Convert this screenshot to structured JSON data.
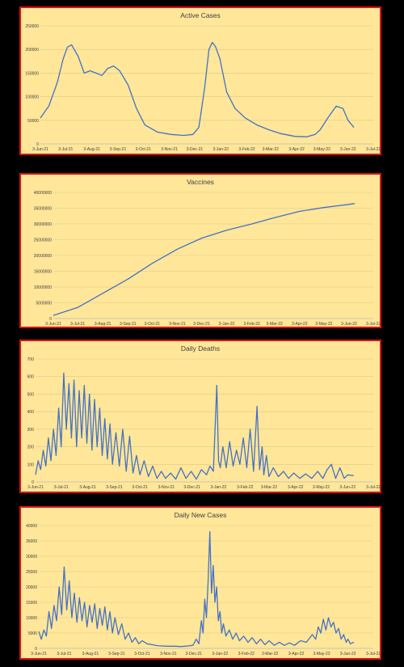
{
  "chart_data": [
    {
      "type": "line",
      "title": "Active Cases",
      "color": "#4472c4",
      "y_ticks": [
        "0",
        "50000",
        "100000",
        "150000",
        "200000",
        "250000"
      ],
      "ylim": [
        0,
        250000
      ],
      "x_labels": [
        "3-Jun-21",
        "3-Jul-21",
        "3-Aug-21",
        "3-Sep-21",
        "3-Oct-21",
        "3-Nov-21",
        "3-Dec-21",
        "3-Jan-22",
        "3-Feb-22",
        "3-Mar-22",
        "3-Apr-22",
        "3-May-22",
        "3-Jun-22",
        "3-Jul-22"
      ],
      "x_dates": [
        "2021-06-03",
        "2021-06-13",
        "2021-06-23",
        "2021-06-30",
        "2021-07-05",
        "2021-07-10",
        "2021-07-18",
        "2021-07-25",
        "2021-08-01",
        "2021-08-08",
        "2021-08-15",
        "2021-08-22",
        "2021-08-29",
        "2021-09-05",
        "2021-09-15",
        "2021-09-25",
        "2021-10-05",
        "2021-10-20",
        "2021-11-05",
        "2021-11-20",
        "2021-12-01",
        "2021-12-08",
        "2021-12-15",
        "2021-12-20",
        "2021-12-24",
        "2021-12-28",
        "2022-01-02",
        "2022-01-10",
        "2022-01-20",
        "2022-02-01",
        "2022-02-15",
        "2022-03-01",
        "2022-03-15",
        "2022-04-01",
        "2022-04-15",
        "2022-04-25",
        "2022-05-01",
        "2022-05-10",
        "2022-05-20",
        "2022-05-28",
        "2022-06-03",
        "2022-06-10"
      ],
      "values": [
        55000,
        80000,
        130000,
        180000,
        205000,
        210000,
        185000,
        150000,
        155000,
        150000,
        145000,
        160000,
        165000,
        155000,
        125000,
        75000,
        40000,
        25000,
        20000,
        18000,
        20000,
        35000,
        120000,
        200000,
        215000,
        205000,
        180000,
        110000,
        75000,
        55000,
        40000,
        30000,
        22000,
        16000,
        15000,
        20000,
        30000,
        55000,
        80000,
        75000,
        50000,
        35000
      ]
    },
    {
      "type": "line",
      "title": "Vaccines",
      "color": "#4472c4",
      "y_ticks": [
        "0",
        "5000000",
        "10000000",
        "15000000",
        "20000000",
        "25000000",
        "30000000",
        "35000000",
        "40000000"
      ],
      "ylim": [
        0,
        40000000
      ],
      "x_labels": [
        "3-Jun-21",
        "3-Jul-21",
        "3-Aug-21",
        "3-Sep-21",
        "3-Oct-21",
        "3-Nov-21",
        "3-Dec-21",
        "3-Jan-22",
        "3-Feb-22",
        "3-Mar-22",
        "3-Apr-22",
        "3-May-22",
        "3-Jun-22",
        "3-Jul-22"
      ],
      "x_dates": [
        "2021-06-03",
        "2021-07-03",
        "2021-08-03",
        "2021-09-03",
        "2021-10-03",
        "2021-11-03",
        "2021-12-03",
        "2022-01-03",
        "2022-02-03",
        "2022-03-03",
        "2022-04-03",
        "2022-05-03",
        "2022-06-03",
        "2022-06-10"
      ],
      "values": [
        1000000,
        3500000,
        8000000,
        12500000,
        17500000,
        22000000,
        25500000,
        28000000,
        30000000,
        32000000,
        34000000,
        35200000,
        36200000,
        36500000
      ]
    },
    {
      "type": "line",
      "title": "Daily Deaths",
      "color": "#4472c4",
      "y_ticks": [
        "0",
        "100",
        "200",
        "300",
        "400",
        "500",
        "600",
        "700"
      ],
      "ylim": [
        0,
        700
      ],
      "x_labels": [
        "3-Jun-21",
        "3-Jul-21",
        "3-Aug-21",
        "3-Sep-21",
        "3-Oct-21",
        "3-Nov-21",
        "3-Dec-21",
        "3-Jan-22",
        "3-Feb-22",
        "3-Mar-22",
        "3-Apr-22",
        "3-May-22",
        "3-Jun-22",
        "3-Jul-22"
      ],
      "x_dates": [
        "2021-06-03",
        "2021-06-06",
        "2021-06-09",
        "2021-06-12",
        "2021-06-15",
        "2021-06-18",
        "2021-06-21",
        "2021-06-24",
        "2021-06-27",
        "2021-06-30",
        "2021-07-03",
        "2021-07-06",
        "2021-07-09",
        "2021-07-12",
        "2021-07-15",
        "2021-07-18",
        "2021-07-21",
        "2021-07-24",
        "2021-07-27",
        "2021-07-30",
        "2021-08-02",
        "2021-08-05",
        "2021-08-08",
        "2021-08-11",
        "2021-08-14",
        "2021-08-17",
        "2021-08-20",
        "2021-08-23",
        "2021-08-26",
        "2021-08-29",
        "2021-09-01",
        "2021-09-05",
        "2021-09-09",
        "2021-09-13",
        "2021-09-17",
        "2021-09-21",
        "2021-09-25",
        "2021-09-29",
        "2021-10-03",
        "2021-10-08",
        "2021-10-13",
        "2021-10-18",
        "2021-10-23",
        "2021-10-28",
        "2021-11-02",
        "2021-11-08",
        "2021-11-14",
        "2021-11-20",
        "2021-11-26",
        "2021-12-02",
        "2021-12-08",
        "2021-12-14",
        "2021-12-20",
        "2021-12-24",
        "2021-12-28",
        "2022-01-01",
        "2022-01-03",
        "2022-01-05",
        "2022-01-08",
        "2022-01-12",
        "2022-01-16",
        "2022-01-20",
        "2022-01-24",
        "2022-01-28",
        "2022-02-01",
        "2022-02-05",
        "2022-02-09",
        "2022-02-13",
        "2022-02-17",
        "2022-02-20",
        "2022-02-23",
        "2022-02-25",
        "2022-02-28",
        "2022-03-03",
        "2022-03-08",
        "2022-03-14",
        "2022-03-20",
        "2022-03-26",
        "2022-04-01",
        "2022-04-08",
        "2022-04-15",
        "2022-04-22",
        "2022-04-29",
        "2022-05-05",
        "2022-05-10",
        "2022-05-15",
        "2022-05-20",
        "2022-05-25",
        "2022-05-30",
        "2022-06-03",
        "2022-06-10"
      ],
      "values": [
        40,
        120,
        70,
        180,
        90,
        250,
        120,
        300,
        150,
        420,
        200,
        620,
        300,
        560,
        250,
        580,
        200,
        520,
        250,
        550,
        220,
        500,
        180,
        470,
        200,
        420,
        150,
        360,
        130,
        330,
        100,
        280,
        90,
        300,
        60,
        260,
        50,
        150,
        40,
        120,
        30,
        90,
        20,
        60,
        20,
        50,
        15,
        80,
        20,
        60,
        15,
        70,
        40,
        90,
        60,
        550,
        120,
        80,
        200,
        80,
        230,
        90,
        180,
        100,
        250,
        80,
        300,
        60,
        430,
        70,
        200,
        40,
        150,
        30,
        80,
        30,
        60,
        20,
        50,
        20,
        45,
        20,
        60,
        20,
        70,
        100,
        20,
        80,
        20,
        40,
        35
      ]
    },
    {
      "type": "line",
      "title": "Daily New Cases",
      "color": "#4472c4",
      "y_ticks": [
        "0",
        "5000",
        "10000",
        "15000",
        "20000",
        "25000",
        "30000",
        "35000",
        "40000"
      ],
      "ylim": [
        0,
        40000
      ],
      "x_labels": [
        "3-Jun-21",
        "3-Jul-21",
        "3-Aug-21",
        "3-Sep-21",
        "3-Oct-21",
        "3-Nov-21",
        "3-Dec-21",
        "3-Jan-22",
        "3-Feb-22",
        "3-Mar-22",
        "3-Apr-22",
        "3-May-22",
        "3-Jun-22",
        "3-Jul-22"
      ],
      "x_dates": [
        "2021-06-03",
        "2021-06-06",
        "2021-06-09",
        "2021-06-12",
        "2021-06-15",
        "2021-06-18",
        "2021-06-21",
        "2021-06-24",
        "2021-06-27",
        "2021-06-30",
        "2021-07-03",
        "2021-07-06",
        "2021-07-09",
        "2021-07-12",
        "2021-07-15",
        "2021-07-18",
        "2021-07-21",
        "2021-07-24",
        "2021-07-27",
        "2021-07-30",
        "2021-08-02",
        "2021-08-05",
        "2021-08-08",
        "2021-08-11",
        "2021-08-14",
        "2021-08-17",
        "2021-08-20",
        "2021-08-23",
        "2021-08-26",
        "2021-08-29",
        "2021-09-01",
        "2021-09-05",
        "2021-09-09",
        "2021-09-13",
        "2021-09-17",
        "2021-09-21",
        "2021-09-25",
        "2021-09-29",
        "2021-10-03",
        "2021-10-09",
        "2021-10-15",
        "2021-10-21",
        "2021-10-27",
        "2021-11-02",
        "2021-11-10",
        "2021-11-18",
        "2021-11-26",
        "2021-12-02",
        "2021-12-06",
        "2021-12-09",
        "2021-12-12",
        "2021-12-14",
        "2021-12-16",
        "2021-12-18",
        "2021-12-20",
        "2021-12-22",
        "2021-12-24",
        "2021-12-26",
        "2021-12-28",
        "2021-12-30",
        "2022-01-01",
        "2022-01-03",
        "2022-01-05",
        "2022-01-07",
        "2022-01-10",
        "2022-01-14",
        "2022-01-18",
        "2022-01-22",
        "2022-01-26",
        "2022-01-31",
        "2022-02-05",
        "2022-02-10",
        "2022-02-15",
        "2022-02-20",
        "2022-02-25",
        "2022-03-02",
        "2022-03-08",
        "2022-03-14",
        "2022-03-20",
        "2022-03-26",
        "2022-04-01",
        "2022-04-08",
        "2022-04-15",
        "2022-04-22",
        "2022-04-26",
        "2022-04-29",
        "2022-05-02",
        "2022-05-05",
        "2022-05-08",
        "2022-05-11",
        "2022-05-14",
        "2022-05-17",
        "2022-05-20",
        "2022-05-23",
        "2022-05-26",
        "2022-05-29",
        "2022-06-01",
        "2022-06-03",
        "2022-06-06",
        "2022-06-10"
      ],
      "values": [
        5500,
        3000,
        6000,
        4000,
        12000,
        6500,
        14000,
        9000,
        20000,
        11000,
        26500,
        12500,
        22000,
        10000,
        18000,
        8500,
        16500,
        9000,
        15000,
        7000,
        14000,
        8500,
        14500,
        6500,
        13000,
        7500,
        13500,
        6000,
        12000,
        5000,
        10000,
        4500,
        8000,
        3000,
        5000,
        2000,
        3500,
        1500,
        2500,
        1500,
        1200,
        900,
        800,
        700,
        700,
        600,
        800,
        1000,
        3000,
        1500,
        9000,
        5000,
        16000,
        10000,
        22000,
        38000,
        18000,
        27000,
        15000,
        20000,
        9000,
        12000,
        5000,
        8000,
        4000,
        6000,
        3000,
        5000,
        2500,
        4000,
        2000,
        3500,
        1500,
        3000,
        1200,
        2500,
        1000,
        2000,
        1000,
        1800,
        1000,
        2500,
        2000,
        4500,
        3000,
        7000,
        5000,
        9500,
        6000,
        10000,
        7000,
        8500,
        5000,
        6500,
        3000,
        4500,
        2000,
        3000,
        1500,
        2000
      ]
    }
  ]
}
